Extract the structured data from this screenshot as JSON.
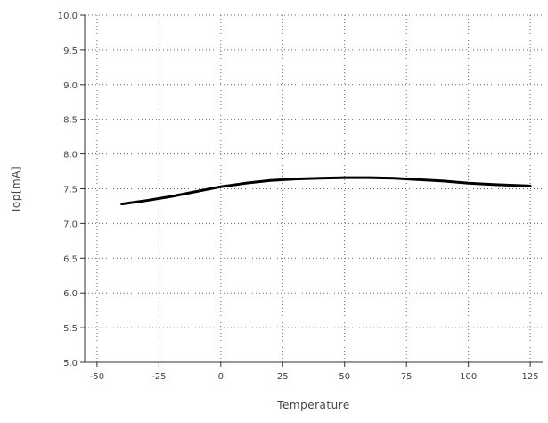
{
  "chart_data": {
    "type": "line",
    "title": "",
    "xlabel": "Temperature",
    "ylabel": "Iop[mA]",
    "xlim": [
      -55,
      130
    ],
    "ylim": [
      5.0,
      10.0
    ],
    "x_ticks": [
      -50,
      -25,
      0,
      25,
      50,
      75,
      100,
      125
    ],
    "x_tick_labels": [
      "-50",
      "-25",
      "0",
      "25",
      "50",
      "75",
      "100",
      "125"
    ],
    "y_ticks": [
      5.0,
      5.5,
      6.0,
      6.5,
      7.0,
      7.5,
      8.0,
      8.5,
      9.0,
      9.5,
      10.0
    ],
    "y_tick_labels": [
      "5.0",
      "5.5",
      "6.0",
      "6.5",
      "7.0",
      "7.5",
      "8.0",
      "8.5",
      "9.0",
      "9.5",
      "10.0"
    ],
    "grid": true,
    "grid_style": "dotted",
    "series": [
      {
        "color": "#000000",
        "x": [
          -40,
          -30,
          -20,
          -10,
          0,
          10,
          20,
          30,
          40,
          50,
          60,
          70,
          80,
          90,
          100,
          110,
          125
        ],
        "y": [
          7.28,
          7.33,
          7.39,
          7.46,
          7.53,
          7.58,
          7.62,
          7.64,
          7.65,
          7.66,
          7.66,
          7.65,
          7.63,
          7.61,
          7.58,
          7.56,
          7.54
        ]
      }
    ]
  }
}
